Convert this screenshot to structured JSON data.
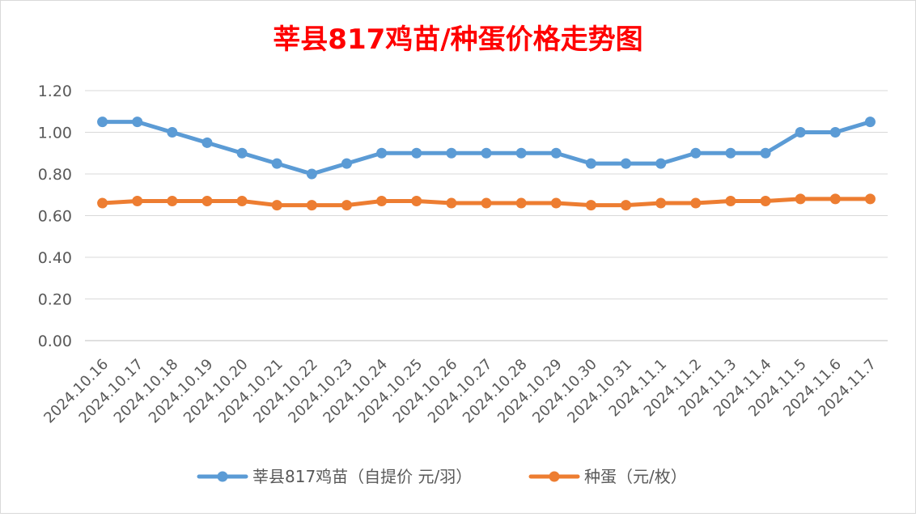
{
  "chart_data": {
    "type": "line",
    "title": "莘县817鸡苗/种蛋价格走势图",
    "title_color": "#ff0000",
    "xlabel": "",
    "ylabel": "",
    "ylim": [
      0,
      1.2
    ],
    "yticks": [
      "0.00",
      "0.20",
      "0.40",
      "0.60",
      "0.80",
      "1.00",
      "1.20"
    ],
    "grid": true,
    "legend_position": "bottom",
    "categories": [
      "2024.10.16",
      "2024.10.17",
      "2024.10.18",
      "2024.10.19",
      "2024.10.20",
      "2024.10.21",
      "2024.10.22",
      "2024.10.23",
      "2024.10.24",
      "2024.10.25",
      "2024.10.26",
      "2024.10.27",
      "2024.10.28",
      "2024.10.29",
      "2024.10.30",
      "2024.10.31",
      "2024.11.1",
      "2024.11.2",
      "2024.11.3",
      "2024.11.4",
      "2024.11.5",
      "2024.11.6",
      "2024.11.7"
    ],
    "series": [
      {
        "name": "莘县817鸡苗（自提价 元/羽）",
        "color": "#5b9bd5",
        "values": [
          1.05,
          1.05,
          1.0,
          0.95,
          0.9,
          0.85,
          0.8,
          0.85,
          0.9,
          0.9,
          0.9,
          0.9,
          0.9,
          0.9,
          0.85,
          0.85,
          0.85,
          0.9,
          0.9,
          0.9,
          1.0,
          1.0,
          1.05
        ]
      },
      {
        "name": "种蛋（元/枚）",
        "color": "#ed7d31",
        "values": [
          0.66,
          0.67,
          0.67,
          0.67,
          0.67,
          0.65,
          0.65,
          0.65,
          0.67,
          0.67,
          0.66,
          0.66,
          0.66,
          0.66,
          0.65,
          0.65,
          0.66,
          0.66,
          0.67,
          0.67,
          0.68,
          0.68,
          0.68
        ]
      }
    ]
  }
}
